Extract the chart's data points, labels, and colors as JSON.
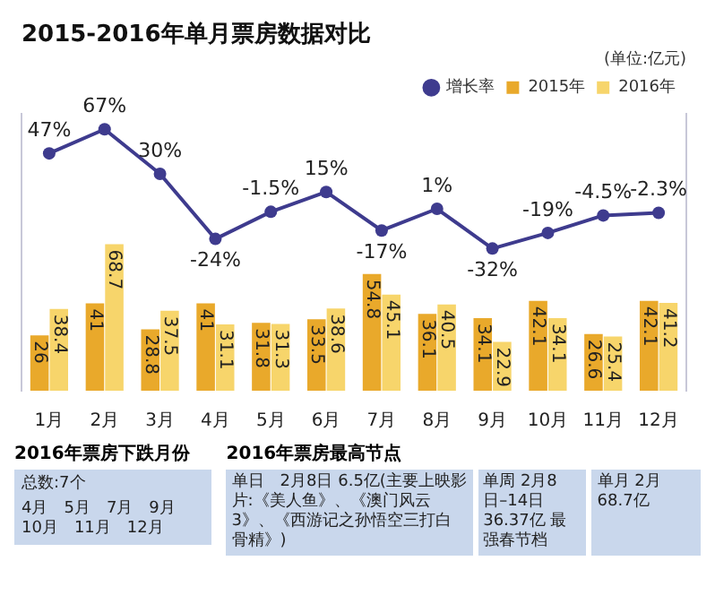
{
  "chart_data": [
    {
      "type": "bar",
      "title": "2015-2016年单月票房数据对比",
      "subtitle": "(单位:亿元)",
      "categories": [
        "1月",
        "2月",
        "3月",
        "4月",
        "5月",
        "6月",
        "7月",
        "8月",
        "9月",
        "10月",
        "11月",
        "12月"
      ],
      "series": [
        {
          "name": "2015年",
          "color": "#e9a92b",
          "values": [
            26,
            41,
            28.8,
            41,
            31.8,
            33.5,
            54.8,
            36.1,
            34.1,
            42.1,
            26.6,
            42.1
          ]
        },
        {
          "name": "2016年",
          "color": "#f7d56b",
          "values": [
            38.4,
            68.7,
            37.5,
            31.1,
            31.3,
            38.6,
            45.1,
            40.5,
            22.9,
            34.1,
            25.4,
            41.2
          ]
        },
        {
          "name": "增长率",
          "type": "line",
          "axis": "y2",
          "color": "#3e3b8e",
          "marker": "circle",
          "values": [
            47,
            67,
            30,
            -24,
            -1.5,
            15,
            -17,
            1,
            -32,
            -19,
            -4.5,
            -2.3
          ],
          "value_labels": [
            "47%",
            "67%",
            "30%",
            "-24%",
            "-1.5%",
            "15%",
            "-17%",
            "1%",
            "-32%",
            "-19%",
            "-4.5%",
            "-2.3%"
          ]
        }
      ],
      "ylim": [
        0,
        130
      ],
      "y2lim": [
        -150,
        80
      ],
      "data_labels": true,
      "legend": "top right",
      "grid": false,
      "tick_labels": "x"
    },
    {
      "type": "other",
      "title": "2016年票房下跌月份",
      "annotations": [
        "总数:7个",
        "4月　5月　7月　9月　10月　11月　12月"
      ]
    },
    {
      "type": "other",
      "title": "2016年票房最高节点",
      "annotations": [
        "单日　2月8日 6.5亿(主要上映影片:《美人鱼》、《澳门风云3》、《西游记之孙悟空三打白骨精》)",
        "单周 2月8日–14日 36.37亿 最强春节档",
        "单月 2月 68.7亿"
      ]
    }
  ]
}
